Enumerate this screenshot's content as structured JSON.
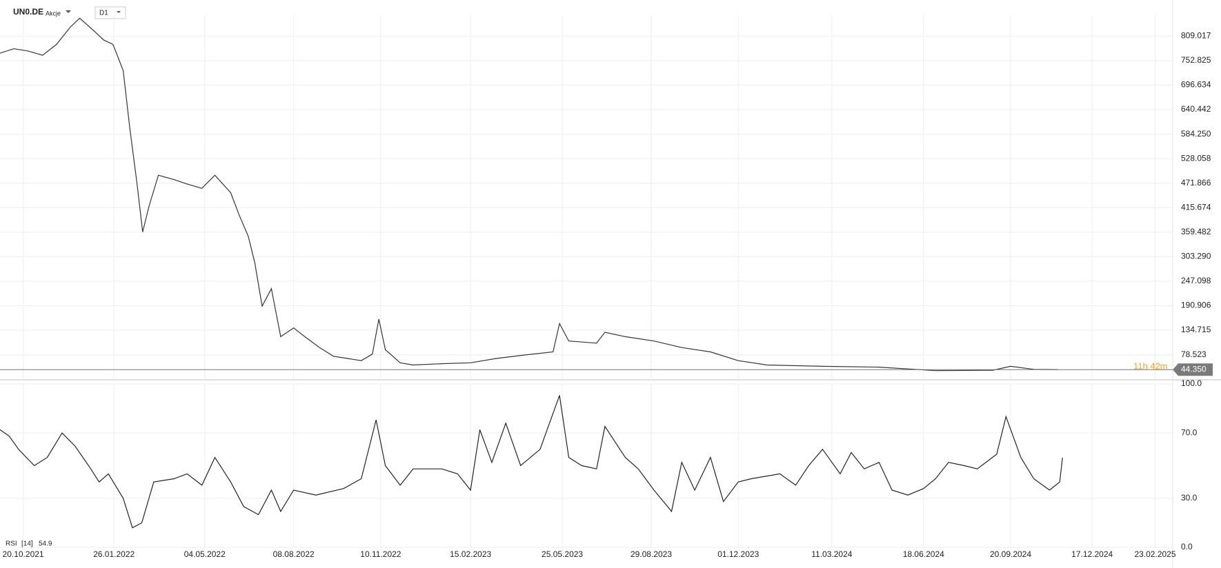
{
  "chart_data": [
    {
      "type": "line",
      "title": "UN0.DE",
      "subtitle": "Akcje",
      "timeframe": "D1",
      "color": "#333333",
      "grid": true,
      "xlim": [
        "25.09.2021",
        "14.03.2025"
      ],
      "ylim": [
        21,
        857
      ],
      "yticks": [
        {
          "value": 78.523,
          "label": "78.523"
        },
        {
          "value": 134.715,
          "label": "134.715"
        },
        {
          "value": 190.906,
          "label": "190.906"
        },
        {
          "value": 247.098,
          "label": "247.098"
        },
        {
          "value": 303.29,
          "label": "303.290"
        },
        {
          "value": 359.482,
          "label": "359.482"
        },
        {
          "value": 415.674,
          "label": "415.674"
        },
        {
          "value": 471.866,
          "label": "471.866"
        },
        {
          "value": 528.058,
          "label": "528.058"
        },
        {
          "value": 584.25,
          "label": "584.250"
        },
        {
          "value": 640.442,
          "label": "640.442"
        },
        {
          "value": 696.634,
          "label": "696.634"
        },
        {
          "value": 752.825,
          "label": "752.825"
        },
        {
          "value": 809.017,
          "label": "809.017"
        }
      ],
      "current_price": {
        "value": 44.35,
        "label": "44.350"
      },
      "countdown": "11h 42m",
      "x": [
        "25.09.2021",
        "10.10.2021",
        "25.10.2021",
        "10.11.2021",
        "25.11.2021",
        "10.12.2021",
        "20.12.2021",
        "05.01.2022",
        "15.01.2022",
        "25.01.2022",
        "05.02.2022",
        "12.02.2022",
        "20.02.2022",
        "26.02.2022",
        "05.03.2022",
        "15.03.2022",
        "01.04.2022",
        "15.04.2022",
        "01.05.2022",
        "15.05.2022",
        "01.06.2022",
        "10.06.2022",
        "20.06.2022",
        "27.06.2022",
        "05.07.2022",
        "15.07.2022",
        "25.07.2022",
        "08.08.2022",
        "20.08.2022",
        "05.09.2022",
        "20.09.2022",
        "05.10.2022",
        "20.10.2022",
        "01.11.2022",
        "08.11.2022",
        "15.11.2022",
        "01.12.2022",
        "15.12.2022",
        "15.01.2023",
        "15.02.2023",
        "15.03.2023",
        "15.04.2023",
        "15.05.2023",
        "22.05.2023",
        "01.06.2023",
        "01.07.2023",
        "10.07.2023",
        "01.08.2023",
        "01.09.2023",
        "01.10.2023",
        "01.11.2023",
        "01.12.2023",
        "01.01.2024",
        "01.03.2024",
        "01.05.2024",
        "01.07.2024",
        "01.09.2024",
        "20.09.2024",
        "15.10.2024",
        "10.11.2024"
      ],
      "values": [
        770,
        780,
        775,
        765,
        790,
        830,
        850,
        820,
        800,
        790,
        730,
        600,
        470,
        360,
        420,
        490,
        480,
        470,
        460,
        490,
        450,
        400,
        350,
        290,
        190,
        230,
        120,
        140,
        120,
        95,
        75,
        70,
        65,
        80,
        160,
        90,
        60,
        55,
        58,
        60,
        70,
        78,
        85,
        150,
        110,
        105,
        130,
        120,
        110,
        95,
        85,
        65,
        55,
        52,
        50,
        42,
        43,
        52,
        45,
        44.35
      ]
    },
    {
      "type": "line",
      "title": "RSI",
      "period": "[14]",
      "last_value": 54.9,
      "color": "#222222",
      "grid": true,
      "xlim": [
        "25.09.2021",
        "14.03.2025"
      ],
      "ylim": [
        0,
        100
      ],
      "yticks": [
        {
          "value": 0,
          "label": "0.0"
        },
        {
          "value": 30,
          "label": "30.0"
        },
        {
          "value": 70,
          "label": "70.0"
        },
        {
          "value": 100,
          "label": "100.0"
        }
      ],
      "xticks": [
        "20.10.2021",
        "26.01.2022",
        "04.05.2022",
        "08.08.2022",
        "10.11.2022",
        "15.02.2023",
        "25.05.2023",
        "29.08.2023",
        "01.12.2023",
        "11.03.2024",
        "18.06.2024",
        "20.09.2024",
        "17.12.2024",
        "23.02.2025"
      ],
      "x": [
        "25.09.2021",
        "05.10.2021",
        "15.10.2021",
        "01.11.2021",
        "15.11.2021",
        "01.12.2021",
        "15.12.2021",
        "01.01.2022",
        "10.01.2022",
        "20.01.2022",
        "05.02.2022",
        "15.02.2022",
        "25.02.2022",
        "10.03.2022",
        "01.04.2022",
        "15.04.2022",
        "01.05.2022",
        "15.05.2022",
        "01.06.2022",
        "15.06.2022",
        "01.07.2022",
        "15.07.2022",
        "25.07.2022",
        "08.08.2022",
        "01.09.2022",
        "01.10.2022",
        "20.10.2022",
        "05.11.2022",
        "15.11.2022",
        "01.12.2022",
        "15.12.2022",
        "15.01.2023",
        "01.02.2023",
        "15.02.2023",
        "25.02.2023",
        "10.03.2023",
        "25.03.2023",
        "10.04.2023",
        "01.05.2023",
        "22.05.2023",
        "01.06.2023",
        "15.06.2023",
        "01.07.2023",
        "10.07.2023",
        "01.08.2023",
        "15.08.2023",
        "01.09.2023",
        "20.09.2023",
        "01.10.2023",
        "15.10.2023",
        "01.11.2023",
        "15.11.2023",
        "01.12.2023",
        "15.12.2023",
        "15.01.2024",
        "01.02.2024",
        "15.02.2024",
        "01.03.2024",
        "20.03.2024",
        "01.04.2024",
        "15.04.2024",
        "01.05.2024",
        "15.05.2024",
        "01.06.2024",
        "18.06.2024",
        "01.07.2024",
        "15.07.2024",
        "01.08.2024",
        "15.08.2024",
        "05.09.2024",
        "15.09.2024",
        "01.10.2024",
        "15.10.2024",
        "01.11.2024",
        "12.11.2024",
        "15.11.2024"
      ],
      "values": [
        72,
        68,
        60,
        50,
        55,
        70,
        62,
        48,
        40,
        45,
        30,
        12,
        15,
        40,
        42,
        45,
        38,
        55,
        40,
        25,
        20,
        35,
        22,
        35,
        32,
        36,
        42,
        78,
        50,
        38,
        48,
        48,
        45,
        35,
        72,
        52,
        76,
        50,
        60,
        93,
        55,
        50,
        48,
        74,
        55,
        48,
        35,
        22,
        52,
        35,
        55,
        28,
        40,
        42,
        45,
        38,
        50,
        60,
        45,
        58,
        48,
        52,
        35,
        32,
        36,
        42,
        52,
        50,
        48,
        57,
        80,
        55,
        42,
        35,
        40,
        54.9
      ]
    }
  ]
}
